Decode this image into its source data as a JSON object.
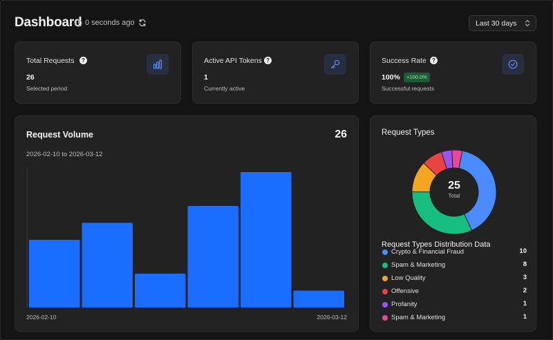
{
  "header": {
    "title": "Dashboard",
    "updated": "0 seconds ago",
    "range_select": "Last 30 days"
  },
  "stats": [
    {
      "label": "Total Requests",
      "value": "26",
      "sub": "Selected period",
      "icon": "bar-chart-icon"
    },
    {
      "label": "Active API Tokens",
      "value": "1",
      "sub": "Currently active",
      "icon": "key-icon"
    },
    {
      "label": "Success Rate",
      "value": "100%",
      "badge": "+100.0%",
      "sub": "Successful requests",
      "icon": "check-circle-icon"
    }
  ],
  "volume": {
    "title": "Request Volume",
    "total": "26",
    "range": "2026-02-10 to 2026-03-12",
    "x_start": "2026-02-10",
    "x_end": "2026-03-12"
  },
  "types": {
    "title": "Request Types",
    "total": "25",
    "total_label": "Total",
    "dist_title": "Request Types Distribution Data"
  },
  "colors": {
    "accent": "#1a6dff",
    "success_badge": "#1d5b34"
  },
  "chart_data": [
    {
      "type": "bar",
      "title": "Request Volume",
      "categories": [
        "",
        "",
        "",
        "",
        "",
        ""
      ],
      "values": [
        4,
        5,
        2,
        6,
        8,
        1
      ],
      "xlabel": "",
      "ylabel": "",
      "ylim": [
        0,
        8
      ],
      "x_tick_labels": [
        "2026-02-10",
        "2026-03-12"
      ],
      "color": "#1a6dff",
      "grid": false
    },
    {
      "type": "pie",
      "donut": true,
      "title": "Request Types",
      "categories": [
        "Crypto & Financial Fraud",
        "Spam & Marketing",
        "Low Quality",
        "Offensive",
        "Profanity",
        "Spam & Marketing"
      ],
      "values": [
        10,
        8,
        3,
        2,
        1,
        1
      ],
      "colors": [
        "#4a8cff",
        "#16bf80",
        "#f5a51f",
        "#ea4343",
        "#9a55ef",
        "#e8479a"
      ]
    }
  ]
}
